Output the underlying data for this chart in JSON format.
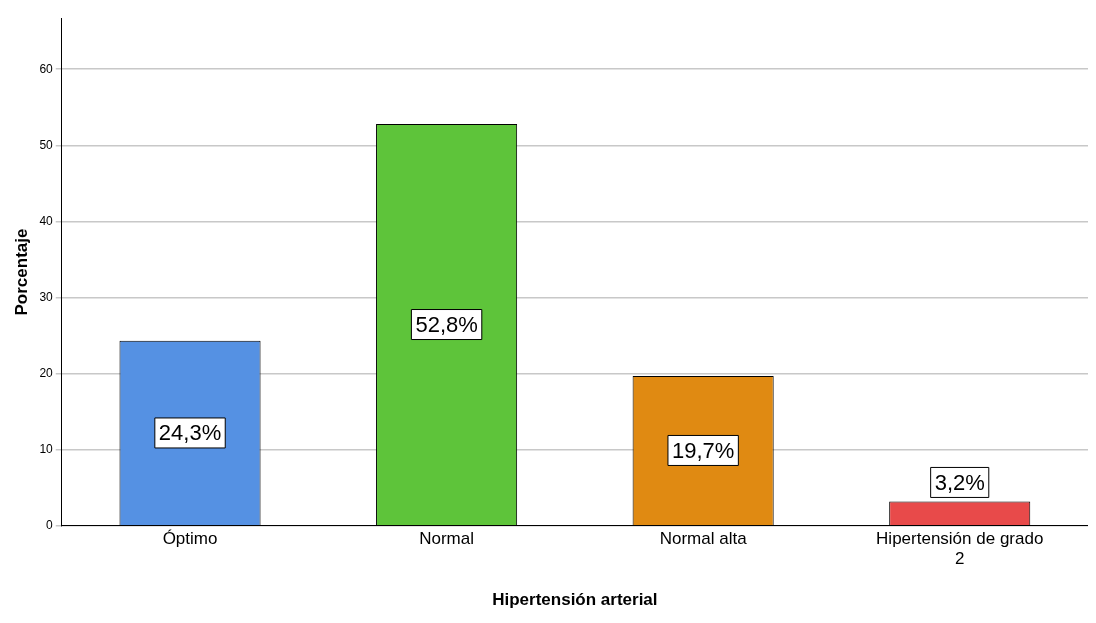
{
  "chart_data": {
    "type": "bar",
    "xlabel": "Hipertensión arterial",
    "ylabel": "Porcentaje",
    "categories": [
      "Óptimo",
      "Normal",
      "Normal alta",
      "Hipertensión de grado 2"
    ],
    "values": [
      24.3,
      52.8,
      19.7,
      3.2
    ],
    "colors": [
      "#5591e3",
      "#5ec43a",
      "#e08a12",
      "#e84a4a"
    ],
    "value_labels": [
      "24,3%",
      "52,8%",
      "19,7%",
      "3,2%"
    ],
    "ylim": [
      0,
      66.7
    ],
    "yticks": [
      0,
      10,
      20,
      30,
      40,
      50,
      60
    ],
    "grid": "y",
    "legend": false
  }
}
